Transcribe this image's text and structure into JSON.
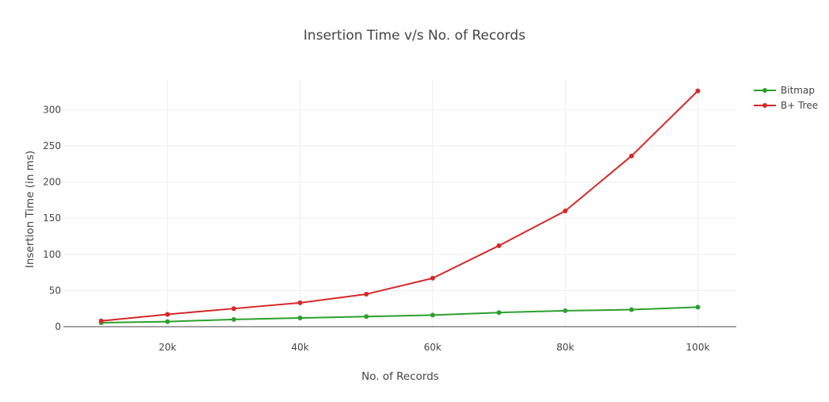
{
  "chart_data": {
    "type": "line",
    "title": "Insertion Time v/s No. of Records",
    "xlabel": "No. of Records",
    "ylabel": "Insertion Time (in ms)",
    "x": [
      10000,
      20000,
      30000,
      40000,
      50000,
      60000,
      70000,
      80000,
      90000,
      100000
    ],
    "xlim": [
      4300,
      105800
    ],
    "ylim": [
      0,
      342
    ],
    "x_ticks": [
      {
        "value": 20000,
        "label": "20k"
      },
      {
        "value": 40000,
        "label": "40k"
      },
      {
        "value": 60000,
        "label": "60k"
      },
      {
        "value": 80000,
        "label": "80k"
      },
      {
        "value": 100000,
        "label": "100k"
      }
    ],
    "y_ticks": [
      {
        "value": 0,
        "label": "0"
      },
      {
        "value": 50,
        "label": "50"
      },
      {
        "value": 100,
        "label": "100"
      },
      {
        "value": 150,
        "label": "150"
      },
      {
        "value": 200,
        "label": "200"
      },
      {
        "value": 250,
        "label": "250"
      },
      {
        "value": 300,
        "label": "300"
      }
    ],
    "grid": true,
    "legend_position": "top-right",
    "series": [
      {
        "name": "Bitmap",
        "color": "#2ca02c",
        "values": [
          5.5,
          7,
          10,
          12,
          14,
          16,
          19.5,
          22,
          23.5,
          27
        ]
      },
      {
        "name": "B+ Tree",
        "color": "#d62728",
        "values": [
          8,
          17,
          25,
          33,
          45,
          67,
          112,
          160,
          236,
          326
        ]
      }
    ]
  }
}
